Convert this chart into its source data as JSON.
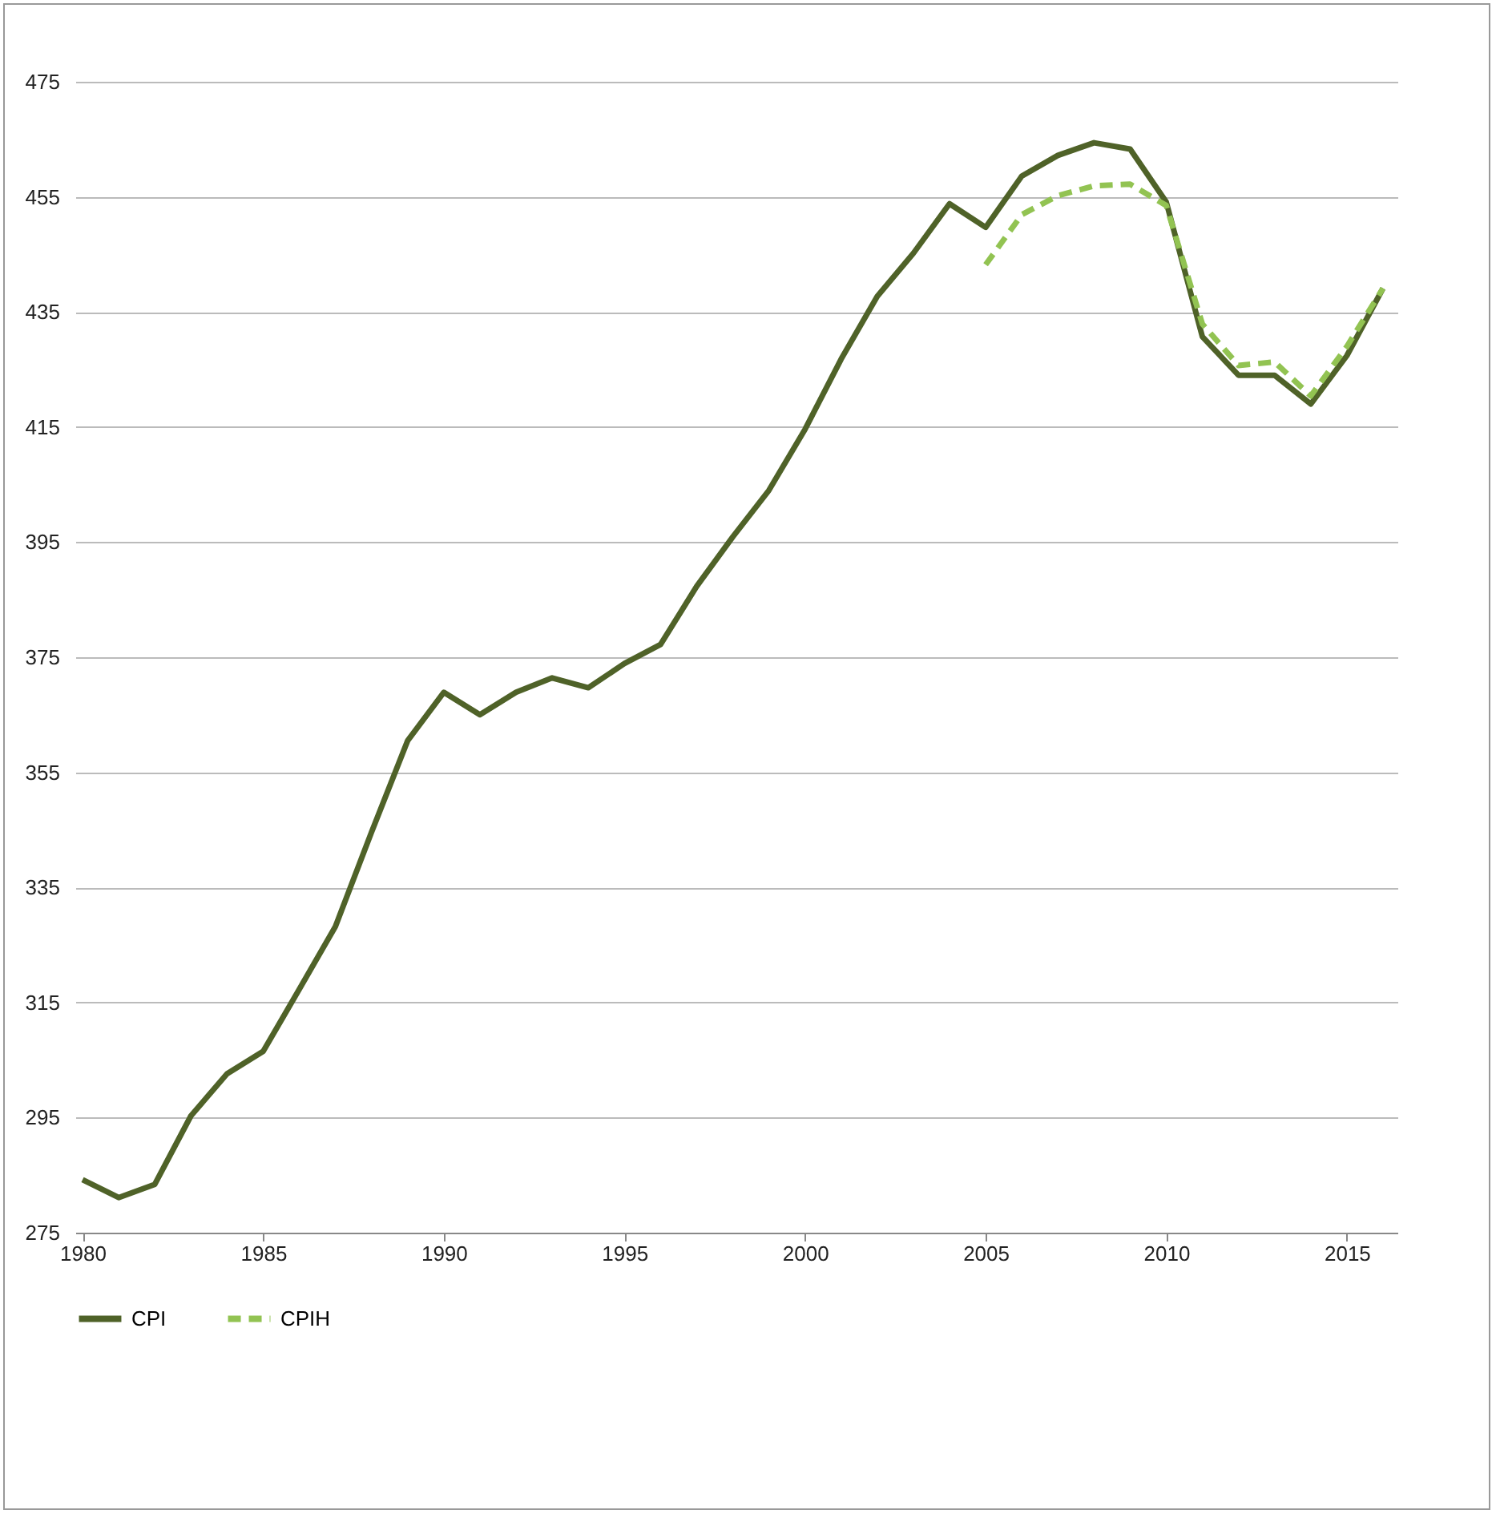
{
  "chart_data": {
    "type": "line",
    "x": [
      1980,
      1981,
      1982,
      1983,
      1984,
      1985,
      1986,
      1987,
      1988,
      1989,
      1990,
      1991,
      1992,
      1993,
      1994,
      1995,
      1996,
      1997,
      1998,
      1999,
      2000,
      2001,
      2002,
      2003,
      2004,
      2005,
      2006,
      2007,
      2008,
      2009,
      2010,
      2011,
      2012,
      2013,
      2014,
      2015,
      2016
    ],
    "series": [
      {
        "name": "CPI",
        "color": "#4f6228",
        "line_style": "solid",
        "values": [
          284.2,
          281.1,
          283.4,
          295.3,
          302.6,
          306.5,
          317.3,
          328.2,
          344.6,
          360.5,
          368.9,
          365,
          368.9,
          371.4,
          369.7,
          373.9,
          377.2,
          387.3,
          395.9,
          404,
          414.6,
          426.8,
          437.7,
          445.2,
          453.8,
          449.7,
          458.6,
          462.2,
          464.4,
          463.3,
          454.1,
          430.7,
          424,
          424,
          419,
          427.4,
          439.1
        ]
      },
      {
        "name": "CPIH",
        "color": "#92c352",
        "line_style": "dashed",
        "values": [
          null,
          null,
          null,
          null,
          null,
          null,
          null,
          null,
          null,
          null,
          null,
          null,
          null,
          null,
          null,
          null,
          null,
          null,
          null,
          null,
          null,
          null,
          null,
          null,
          null,
          443.2,
          451.9,
          455.2,
          456.9,
          457.2,
          453.5,
          432.9,
          425.7,
          426.3,
          420.4,
          429,
          439.1
        ]
      }
    ],
    "xlim": [
      1979.8,
      2016.4
    ],
    "xticks": [
      1980,
      1985,
      1990,
      1995,
      2000,
      2005,
      2010,
      2015
    ],
    "ylim": [
      275,
      475
    ],
    "yticks": [
      275,
      295,
      315,
      335,
      355,
      375,
      395,
      415,
      435,
      455,
      475
    ],
    "grid": "y",
    "legend": "bottom",
    "marker": "none"
  }
}
